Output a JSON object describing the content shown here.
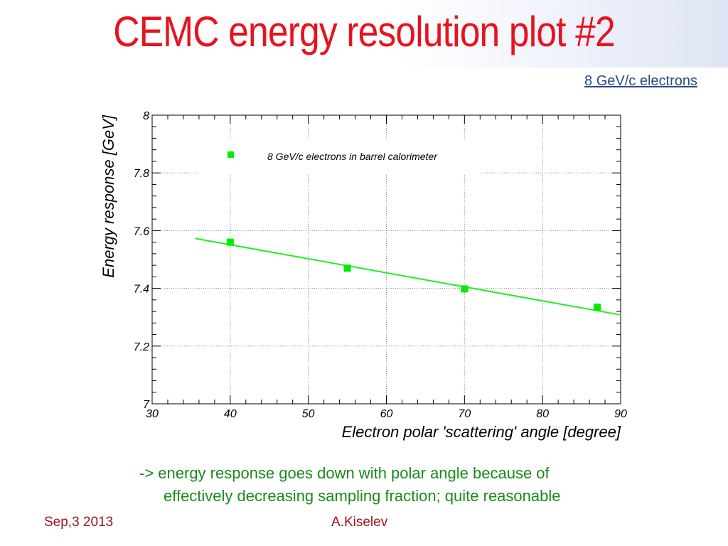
{
  "slide": {
    "title": "CEMC energy resolution plot #2",
    "link_text": "8 GeV/c electrons",
    "note_line1": "-> energy response goes down with polar angle because of",
    "note_line2": "effectively decreasing sampling fraction; quite reasonable",
    "footer_date": "Sep,3 2013",
    "footer_author": "A.Kiselev",
    "colors": {
      "title": "#e8121e",
      "note": "#1a8a1a",
      "footer": "#a01020",
      "link": "#2a4a8a",
      "marker": "#00ee00",
      "fit": "#22ee22"
    }
  },
  "chart_data": {
    "type": "scatter",
    "xlabel": "Electron polar 'scattering' angle [degree]",
    "ylabel": "Energy response [GeV]",
    "xlim": [
      30,
      90
    ],
    "ylim": [
      7,
      8
    ],
    "x_ticks": [
      "30",
      "40",
      "50",
      "60",
      "70",
      "80",
      "90"
    ],
    "y_ticks": [
      "7",
      "7.2",
      "7.4",
      "7.6",
      "7.8",
      "8"
    ],
    "grid": true,
    "legend_position": "top",
    "series": [
      {
        "name": "8 GeV/c electrons in barrel calorimeter",
        "marker": "square",
        "x": [
          40,
          55,
          70,
          87
        ],
        "y": [
          7.56,
          7.47,
          7.398,
          7.335
        ]
      }
    ],
    "fit_line": {
      "x": [
        35.5,
        90
      ],
      "y": [
        7.573,
        7.308
      ]
    }
  }
}
